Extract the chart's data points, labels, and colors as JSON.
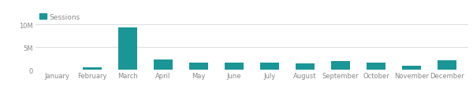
{
  "months": [
    "January",
    "February",
    "March",
    "April",
    "May",
    "June",
    "July",
    "August",
    "September",
    "October",
    "November",
    "December"
  ],
  "values": [
    50000,
    600000,
    9400000,
    2400000,
    1600000,
    1550000,
    1700000,
    1500000,
    1900000,
    1700000,
    900000,
    2100000
  ],
  "bar_color": "#1a9696",
  "legend_label": "Sessions",
  "ylim": [
    0,
    10000000
  ],
  "yticks": [
    0,
    5000000,
    10000000
  ],
  "ytick_labels": [
    "0",
    "5M",
    "10M"
  ],
  "background_color": "#ffffff",
  "grid_color": "#d8d8d8",
  "tick_color": "#888888",
  "label_fontsize": 6.5,
  "tick_fontsize": 6.0,
  "legend_fontsize": 6.5
}
